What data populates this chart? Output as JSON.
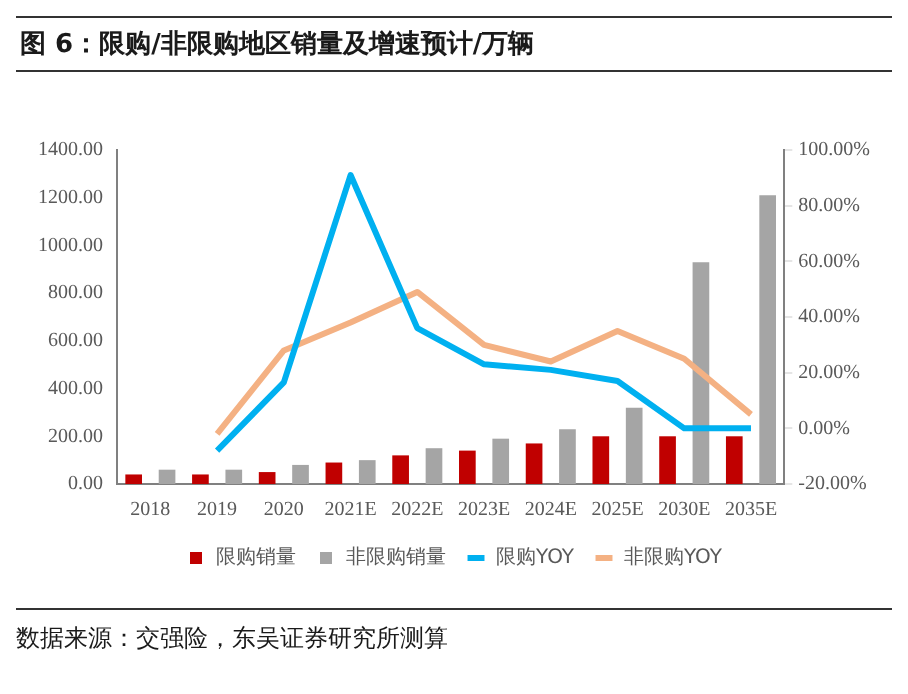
{
  "chart_data": {
    "type": "bar",
    "title": "图 6：限购/非限购地区销量及增速预计/万辆",
    "categories": [
      "2018",
      "2019",
      "2020",
      "2021E",
      "2022E",
      "2023E",
      "2024E",
      "2025E",
      "2030E",
      "2035E"
    ],
    "series": [
      {
        "name": "限购销量",
        "color": "#c00000",
        "values": [
          40,
          40,
          50,
          90,
          120,
          140,
          170,
          200,
          200,
          200
        ]
      },
      {
        "name": "非限购销量",
        "color": "#a5a5a5",
        "values": [
          60,
          60,
          80,
          100,
          150,
          190,
          230,
          320,
          930,
          1210
        ]
      },
      {
        "name": "限购YOY",
        "type": "line",
        "axis": "y2",
        "color": "#00b0f0",
        "values": [
          null,
          -8,
          16.5,
          91,
          36,
          23,
          21,
          17,
          0,
          0
        ]
      },
      {
        "name": "非限购YOY",
        "type": "line",
        "axis": "y2",
        "color": "#f4b183",
        "values": [
          null,
          -2,
          28,
          38,
          49,
          30,
          24,
          35,
          25,
          5
        ]
      }
    ],
    "ylim": [
      0,
      1400
    ],
    "yticks": [
      {
        "value": 0,
        "label": "0.00"
      },
      {
        "value": 200,
        "label": "200.00"
      },
      {
        "value": 400,
        "label": "400.00"
      },
      {
        "value": 600,
        "label": "600.00"
      },
      {
        "value": 800,
        "label": "800.00"
      },
      {
        "value": 1000,
        "label": "1000.00"
      },
      {
        "value": 1200,
        "label": "1200.00"
      },
      {
        "value": 1400,
        "label": "1400.00"
      }
    ],
    "y2lim": [
      -20,
      100
    ],
    "y2ticks": [
      {
        "value": -20,
        "label": "-20.00%"
      },
      {
        "value": 0,
        "label": "0.00%"
      },
      {
        "value": 20,
        "label": "20.00%"
      },
      {
        "value": 40,
        "label": "40.00%"
      },
      {
        "value": 60,
        "label": "60.00%"
      },
      {
        "value": 80,
        "label": "80.00%"
      },
      {
        "value": 100,
        "label": "100.00%"
      }
    ],
    "legend": "bottom",
    "grid": false,
    "annotations": [
      "数据来源：交强险，东吴证券研究所测算"
    ]
  }
}
